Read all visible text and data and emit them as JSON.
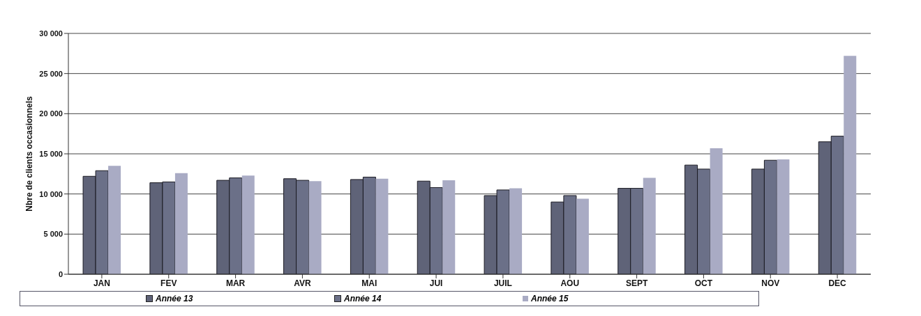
{
  "chart_data": {
    "type": "bar",
    "ylabel": "Nbre de clients occasionnels",
    "categories": [
      "JAN",
      "FEV",
      "MAR",
      "AVR",
      "MAI",
      "JUI",
      "JUIL",
      "AOU",
      "SEPT",
      "OCT",
      "NOV",
      "DEC"
    ],
    "series": [
      {
        "name": "Année 13",
        "color": "#5f6378",
        "values": [
          12200,
          11400,
          11700,
          11900,
          11800,
          11600,
          9800,
          9000,
          10700,
          13600,
          13100,
          16500
        ]
      },
      {
        "name": "Année 14",
        "color": "#6b7088",
        "values": [
          12900,
          11500,
          12000,
          11700,
          12100,
          10800,
          10500,
          9800,
          10700,
          13100,
          14200,
          17200
        ]
      },
      {
        "name": "Année 15",
        "color": "#a9abc4",
        "values": [
          13500,
          12600,
          12300,
          11600,
          11900,
          11700,
          10700,
          9400,
          12000,
          15700,
          14300,
          27200
        ]
      }
    ],
    "ylim": [
      0,
      30000
    ],
    "yticks": [
      {
        "value": 0,
        "label": "0"
      },
      {
        "value": 5000,
        "label": "5 000"
      },
      {
        "value": 10000,
        "label": "10 000"
      },
      {
        "value": 15000,
        "label": "15 000"
      },
      {
        "value": 20000,
        "label": "20 000"
      },
      {
        "value": 25000,
        "label": "25 000"
      },
      {
        "value": 30000,
        "label": "30 000"
      }
    ],
    "grid": "y",
    "legend": "bottom"
  }
}
